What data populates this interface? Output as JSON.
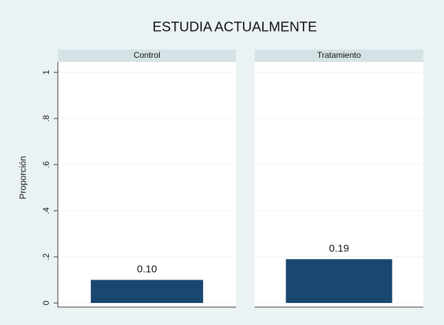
{
  "chart_data": {
    "type": "bar",
    "title": "ESTUDIA ACTUALMENTE",
    "ylabel": "Proporción",
    "categories": [
      "Control",
      "Tratamiento"
    ],
    "values": [
      0.1,
      0.19
    ],
    "value_labels": [
      "0.10",
      "0.19"
    ],
    "color": "#1a476f",
    "ylim": [
      0,
      1.045
    ],
    "yticks": [
      0,
      {
        "value": 0.2,
        "label": ".2"
      },
      {
        "value": 0.4,
        "label": ".4"
      },
      {
        "value": 0.6,
        "label": ".6"
      },
      {
        "value": 0.8,
        "label": ".8"
      },
      1
    ],
    "grid": true
  }
}
